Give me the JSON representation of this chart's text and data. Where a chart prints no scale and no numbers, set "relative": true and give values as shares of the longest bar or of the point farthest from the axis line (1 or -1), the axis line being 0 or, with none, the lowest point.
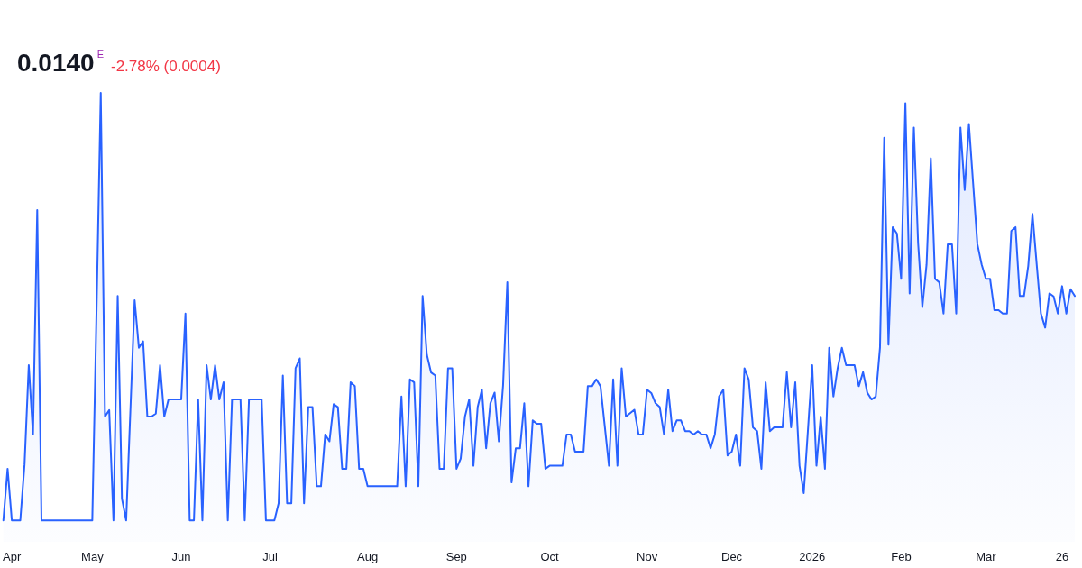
{
  "chart_data": {
    "type": "area",
    "title": "0.0140",
    "annotations": [
      "E",
      "-2.78% (0.0004)"
    ],
    "relative": true,
    "categories": [
      null,
      null,
      "Apr",
      null,
      null,
      null,
      null,
      null,
      null,
      null,
      null,
      null,
      null,
      null,
      null,
      null,
      null,
      null,
      null,
      null,
      null,
      "May",
      null,
      null,
      null,
      null,
      null,
      null,
      null,
      null,
      null,
      null,
      null,
      null,
      null,
      null,
      null,
      null,
      null,
      null,
      null,
      null,
      "Jun",
      null,
      null,
      null,
      null,
      null,
      null,
      null,
      null,
      null,
      null,
      null,
      null,
      null,
      null,
      null,
      null,
      null,
      null,
      null,
      null,
      "Jul",
      null,
      null,
      null,
      null,
      null,
      null,
      null,
      null,
      null,
      null,
      null,
      null,
      null,
      null,
      null,
      null,
      null,
      null,
      null,
      null,
      null,
      null,
      "Aug",
      null,
      null,
      null,
      null,
      null,
      null,
      null,
      null,
      null,
      null,
      null,
      null,
      null,
      null,
      null,
      null,
      null,
      null,
      null,
      null,
      "Sep",
      null,
      null,
      null,
      null,
      null,
      null,
      null,
      null,
      null,
      null,
      null,
      null,
      null,
      null,
      null,
      null,
      null,
      null,
      null,
      null,
      null,
      "Oct",
      null,
      null,
      null,
      null,
      null,
      null,
      null,
      null,
      null,
      null,
      null,
      null,
      null,
      null,
      null,
      null,
      null,
      null,
      null,
      null,
      null,
      null,
      "Nov",
      null,
      null,
      null,
      null,
      null,
      null,
      null,
      null,
      null,
      null,
      null,
      null,
      null,
      null,
      null,
      null,
      null,
      null,
      null,
      "Dec",
      null,
      null,
      null,
      null,
      null,
      null,
      null,
      null,
      null,
      null,
      null,
      null,
      null,
      null,
      null,
      null,
      null,
      null,
      "2026",
      null,
      null,
      null,
      null,
      null,
      null,
      null,
      null,
      null,
      null,
      null,
      null,
      null,
      null,
      null,
      null,
      null,
      null,
      null,
      null,
      "Feb",
      null,
      null,
      null,
      null,
      null,
      null,
      null,
      null,
      null,
      null,
      null,
      null,
      null,
      null,
      null,
      null,
      null,
      null,
      null,
      "Mar",
      null,
      null,
      null,
      null,
      null,
      null,
      null,
      null,
      null,
      null,
      null,
      null,
      null,
      null,
      null,
      null,
      null,
      "26",
      null,
      null,
      null
    ],
    "series": [
      {
        "color": "#2962ff",
        "values": [
          0,
          0.121,
          0,
          0,
          0,
          0.131,
          0.363,
          0.201,
          0.726,
          0,
          0,
          0,
          0,
          0,
          0,
          0,
          0,
          0,
          0,
          0,
          0,
          0,
          0.49,
          1,
          0.243,
          0.258,
          0,
          0.525,
          0.051,
          0,
          0.258,
          0.515,
          0.404,
          0.419,
          0.243,
          0.243,
          0.25,
          0.363,
          0.243,
          0.283,
          0.283,
          0.283,
          0.283,
          0.484,
          0,
          0,
          0.283,
          0,
          0.363,
          0.283,
          0.363,
          0.283,
          0.323,
          0,
          0.283,
          0.283,
          0.283,
          0,
          0.283,
          0.283,
          0.283,
          0.283,
          0,
          0,
          0,
          0.04,
          0.339,
          0.04,
          0.04,
          0.356,
          0.379,
          0.04,
          0.265,
          0.265,
          0.08,
          0.08,
          0.201,
          0.185,
          0.272,
          0.265,
          0.121,
          0.121,
          0.323,
          0.314,
          0.121,
          0.121,
          0.08,
          0.08,
          0.08,
          0.08,
          0.08,
          0.08,
          0.08,
          0.08,
          0.29,
          0.08,
          0.33,
          0.323,
          0.08,
          0.525,
          0.388,
          0.346,
          0.339,
          0.121,
          0.121,
          0.356,
          0.356,
          0.121,
          0.145,
          0.243,
          0.283,
          0.128,
          0.265,
          0.306,
          0.169,
          0.274,
          0.299,
          0.185,
          0.316,
          0.557,
          0.089,
          0.169,
          0.169,
          0.274,
          0.08,
          0.234,
          0.226,
          0.226,
          0.121,
          0.128,
          0.128,
          0.128,
          0.128,
          0.201,
          0.201,
          0.161,
          0.161,
          0.161,
          0.314,
          0.314,
          0.33,
          0.314,
          0.221,
          0.128,
          0.33,
          0.128,
          0.356,
          0.243,
          0.251,
          0.259,
          0.201,
          0.201,
          0.306,
          0.298,
          0.274,
          0.265,
          0.201,
          0.306,
          0.209,
          0.234,
          0.234,
          0.209,
          0.209,
          0.201,
          0.209,
          0.201,
          0.201,
          0.169,
          0.201,
          0.29,
          0.306,
          0.152,
          0.161,
          0.201,
          0.128,
          0.356,
          0.33,
          0.218,
          0.209,
          0.121,
          0.323,
          0.209,
          0.218,
          0.218,
          0.218,
          0.347,
          0.218,
          0.323,
          0.128,
          0.064,
          0.213,
          0.363,
          0.128,
          0.243,
          0.121,
          0.404,
          0.29,
          0.356,
          0.404,
          0.363,
          0.363,
          0.363,
          0.314,
          0.347,
          0.299,
          0.283,
          0.29,
          0.404,
          0.895,
          0.411,
          0.686,
          0.671,
          0.565,
          0.976,
          0.531,
          0.919,
          0.649,
          0.499,
          0.599,
          0.847,
          0.565,
          0.557,
          0.484,
          0.646,
          0.646,
          0.484,
          0.919,
          0.773,
          0.927,
          0.787,
          0.646,
          0.599,
          0.565,
          0.565,
          0.492,
          0.492,
          0.484,
          0.484,
          0.677,
          0.686,
          0.525,
          0.525,
          0.595,
          0.717,
          0.599,
          0.484,
          0.451,
          0.531,
          0.524,
          0.484,
          0.548,
          0.484,
          0.541,
          0.525
        ]
      }
    ]
  }
}
